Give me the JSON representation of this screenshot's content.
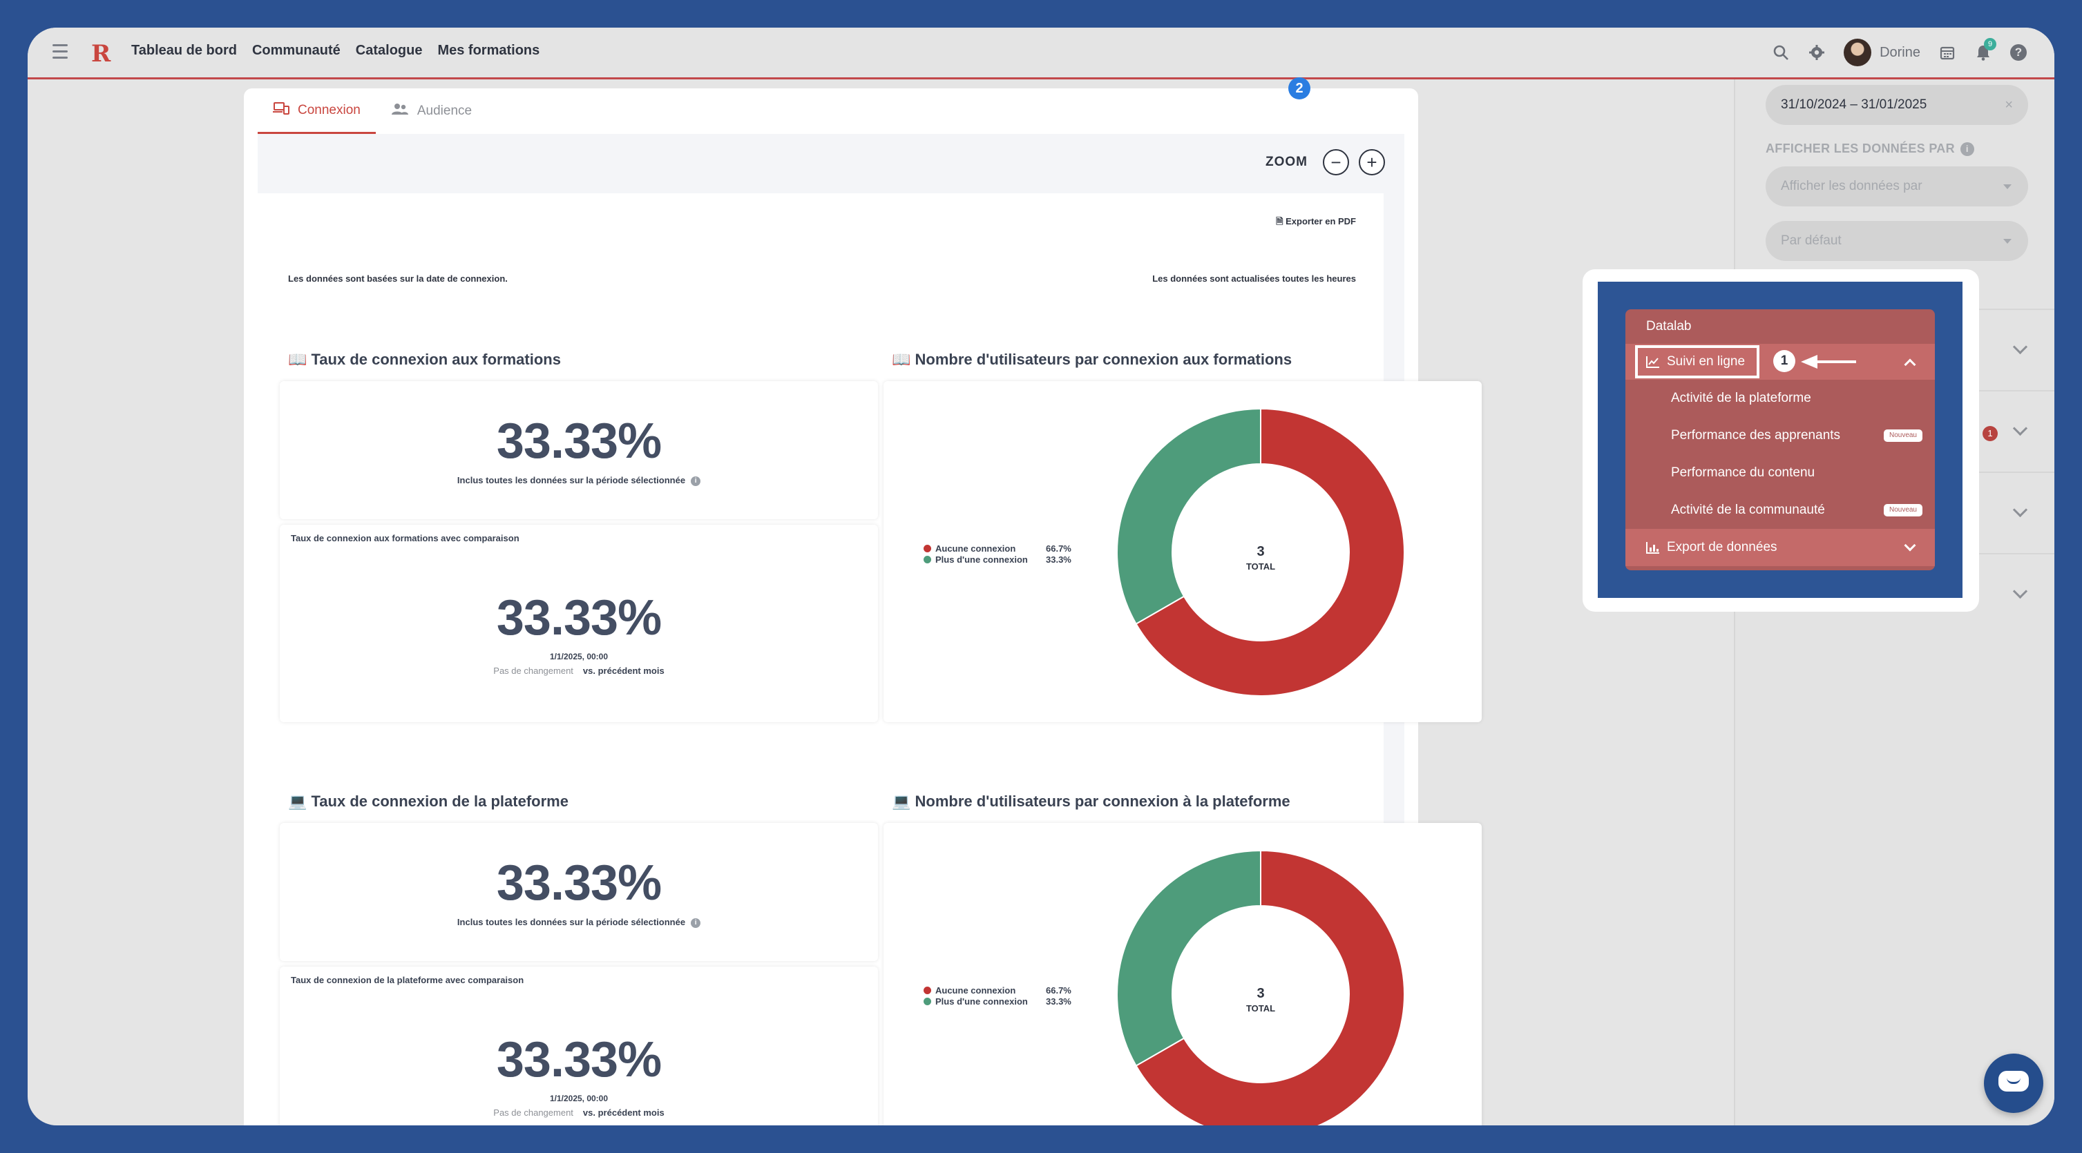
{
  "topnav": {
    "logo": "R",
    "links": [
      "Tableau de bord",
      "Communauté",
      "Catalogue",
      "Mes formations"
    ],
    "user_name": "Dorine",
    "notification_count": "9",
    "icons": [
      "search-icon",
      "gear-icon",
      "calendar-icon",
      "bell-icon",
      "help-icon"
    ]
  },
  "tabs": [
    {
      "label": "Connexion",
      "icon": "devices-icon",
      "active": true
    },
    {
      "label": "Audience",
      "icon": "users-icon",
      "active": false
    }
  ],
  "step2_badge": "2",
  "zoom": {
    "label": "ZOOM",
    "minus": "−",
    "plus": "+"
  },
  "report": {
    "export_label": "Exporter en PDF",
    "note_left": "Les données sont basées sur la date de connexion.",
    "note_right": "Les données sont actualisées toutes les heures",
    "sections": [
      {
        "title": "📖 Taux de connexion aux formations",
        "value": "33.33%",
        "caption": "Inclus toutes les données sur la période sélectionnée",
        "comparison_title": "Taux de connexion aux formations avec comparaison",
        "comparison_value": "33.33%",
        "comparison_date": "1/1/2025, 00:00",
        "comparison_change": "Pas de changement",
        "comparison_vs": "vs. précédent mois"
      },
      {
        "title": "📖 Nombre d'utilisateurs par connexion aux formations",
        "legend": [
          {
            "name": "Aucune connexion",
            "value": "66.7%",
            "color": "#c23533"
          },
          {
            "name": "Plus d'une connexion",
            "value": "33.3%",
            "color": "#4e9c7b"
          }
        ],
        "total": "3",
        "total_label": "TOTAL"
      },
      {
        "title": "💻 Taux de connexion de la plateforme",
        "value": "33.33%",
        "caption": "Inclus toutes les données sur la période sélectionnée",
        "comparison_title": "Taux de connexion de la plateforme avec comparaison",
        "comparison_value": "33.33%",
        "comparison_date": "1/1/2025, 00:00",
        "comparison_change": "Pas de changement",
        "comparison_vs": "vs. précédent mois"
      },
      {
        "title": "💻 Nombre d'utilisateurs par connexion à la plateforme",
        "legend": [
          {
            "name": "Aucune connexion",
            "value": "66.7%",
            "color": "#c23533"
          },
          {
            "name": "Plus d'une connexion",
            "value": "33.3%",
            "color": "#4e9c7b"
          }
        ],
        "total": "3",
        "total_label": "TOTAL"
      }
    ]
  },
  "chart_data": [
    {
      "type": "pie",
      "categories": [
        "Aucune connexion",
        "Plus d'une connexion"
      ],
      "values": [
        66.7,
        33.3
      ],
      "total": 3,
      "title": "Nombre d'utilisateurs par connexion aux formations"
    },
    {
      "type": "pie",
      "categories": [
        "Aucune connexion",
        "Plus d'une connexion"
      ],
      "values": [
        66.7,
        33.3
      ],
      "total": 3,
      "title": "Nombre d'utilisateurs par connexion à la plateforme"
    }
  ],
  "sidebar": {
    "date_range": "31/10/2024 – 31/01/2025",
    "clear_icon": "×",
    "display_label": "AFFICHER LES DONNÉES PAR",
    "display_select_placeholder": "Afficher les données par",
    "default_select": "Par défaut",
    "row_badge": "1"
  },
  "datalab_menu": {
    "header": "Datalab",
    "open_section": "Suivi en ligne",
    "step1_badge": "1",
    "items": [
      {
        "label": "Activité de la plateforme",
        "badge": ""
      },
      {
        "label": "Performance des apprenants",
        "badge": "Nouveau"
      },
      {
        "label": "Performance du contenu",
        "badge": ""
      },
      {
        "label": "Activité de la communauté",
        "badge": "Nouveau"
      }
    ],
    "export_section": "Export de données"
  },
  "colors": {
    "accent": "#c9463f",
    "none": "#c23533",
    "more": "#4e9c7b",
    "frame": "#2b5191"
  }
}
